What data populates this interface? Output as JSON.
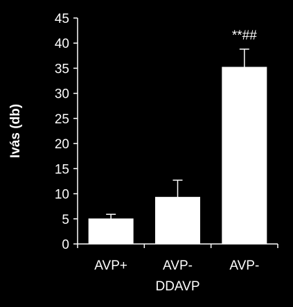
{
  "chart_data": {
    "type": "bar",
    "categories": [
      [
        "AVP+"
      ],
      [
        "AVP-",
        "DDAVP"
      ],
      [
        "AVP-"
      ]
    ],
    "values": [
      5.0,
      9.3,
      35.2
    ],
    "errors": [
      0.9,
      3.4,
      3.6
    ],
    "annotations": [
      "",
      "",
      "**##"
    ],
    "ylabel": "Ivás (db)",
    "xlabel": "",
    "ylim": [
      0,
      45
    ],
    "yticks": [
      0,
      5,
      10,
      15,
      20,
      25,
      30,
      35,
      40,
      45
    ],
    "grid": false,
    "colors": {
      "background": "#000000",
      "bar_fill": "#ffffff",
      "axis": "#ffffff",
      "text": "#ffffff"
    }
  }
}
